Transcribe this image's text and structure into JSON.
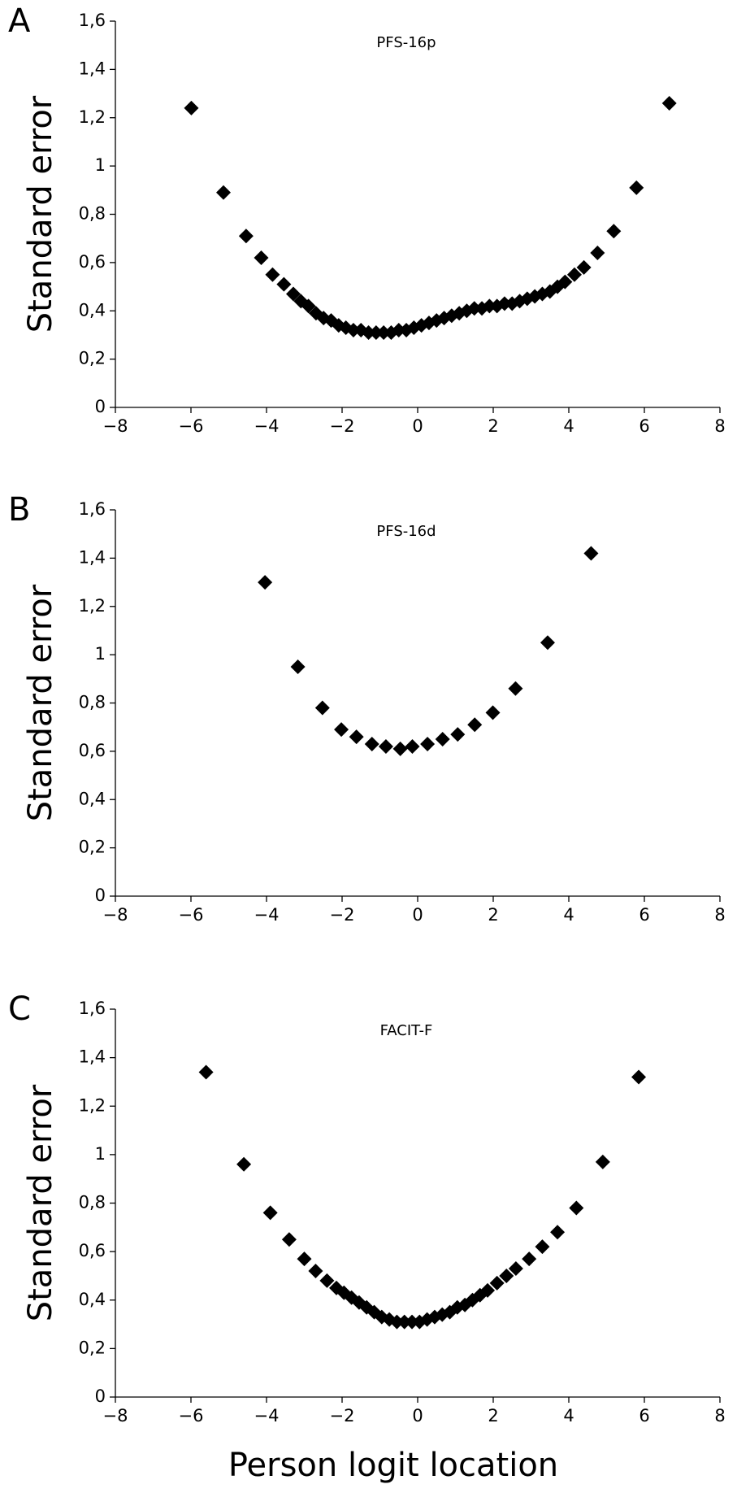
{
  "chart_data": [
    {
      "type": "scatter",
      "panel": "A",
      "title": "PFS-16p",
      "ylabel": "Standard error",
      "color": "#000000",
      "grid": false,
      "x": [
        -5.99,
        -5.14,
        -4.54,
        -4.14,
        -3.84,
        -3.54,
        -3.29,
        -3.09,
        -2.89,
        -2.69,
        -2.49,
        -2.29,
        -2.09,
        -1.9,
        -1.7,
        -1.5,
        -1.3,
        -1.1,
        -0.9,
        -0.7,
        -0.5,
        -0.3,
        -0.1,
        0.1,
        0.3,
        0.5,
        0.7,
        0.9,
        1.1,
        1.3,
        1.5,
        1.7,
        1.9,
        2.1,
        2.3,
        2.5,
        2.7,
        2.9,
        3.1,
        3.3,
        3.5,
        3.7,
        3.9,
        4.15,
        4.4,
        4.76,
        5.19,
        5.79,
        6.66
      ],
      "values": [
        1.24,
        0.89,
        0.71,
        0.62,
        0.55,
        0.51,
        0.47,
        0.44,
        0.42,
        0.39,
        0.37,
        0.36,
        0.34,
        0.33,
        0.32,
        0.32,
        0.31,
        0.31,
        0.31,
        0.31,
        0.32,
        0.32,
        0.33,
        0.34,
        0.35,
        0.36,
        0.37,
        0.38,
        0.39,
        0.4,
        0.41,
        0.41,
        0.42,
        0.42,
        0.43,
        0.43,
        0.44,
        0.45,
        0.46,
        0.47,
        0.48,
        0.5,
        0.52,
        0.55,
        0.58,
        0.64,
        0.73,
        0.91,
        1.26
      ],
      "xlim": [
        -8,
        8
      ],
      "xticks": [
        {
          "value": -8,
          "label": "−8"
        },
        {
          "value": -6,
          "label": "−6"
        },
        {
          "value": -4,
          "label": "−4"
        },
        {
          "value": -2,
          "label": "−2"
        },
        0,
        2,
        4,
        6,
        8
      ],
      "ylim": [
        0,
        1.6
      ],
      "yticks": [
        0,
        {
          "value": 0.2,
          "label": "0,2"
        },
        {
          "value": 0.4,
          "label": "0,4"
        },
        {
          "value": 0.6,
          "label": "0,6"
        },
        {
          "value": 0.8,
          "label": "0,8"
        },
        1,
        {
          "value": 1.2,
          "label": "1,2"
        },
        {
          "value": 1.4,
          "label": "1,4"
        },
        {
          "value": 1.6,
          "label": "1,6"
        }
      ]
    },
    {
      "type": "scatter",
      "panel": "B",
      "title": "PFS-16d",
      "ylabel": "Standard error",
      "color": "#000000",
      "grid": false,
      "x": [
        -4.04,
        -3.17,
        -2.52,
        -2.02,
        -1.62,
        -1.21,
        -0.84,
        -0.46,
        -0.14,
        0.26,
        0.66,
        1.06,
        1.51,
        1.99,
        2.59,
        3.44,
        4.59
      ],
      "values": [
        1.3,
        0.95,
        0.78,
        0.69,
        0.66,
        0.63,
        0.62,
        0.61,
        0.62,
        0.63,
        0.65,
        0.67,
        0.71,
        0.76,
        0.86,
        1.05,
        1.42
      ],
      "xlim": [
        -8,
        8
      ],
      "xticks": [
        {
          "value": -8,
          "label": "−8"
        },
        {
          "value": -6,
          "label": "−6"
        },
        {
          "value": -4,
          "label": "−4"
        },
        {
          "value": -2,
          "label": "−2"
        },
        0,
        2,
        4,
        6,
        8
      ],
      "ylim": [
        0,
        1.6
      ],
      "yticks": [
        0,
        {
          "value": 0.2,
          "label": "0,2"
        },
        {
          "value": 0.4,
          "label": "0,4"
        },
        {
          "value": 0.6,
          "label": "0,6"
        },
        {
          "value": 0.8,
          "label": "0,8"
        },
        1,
        {
          "value": 1.2,
          "label": "1,2"
        },
        {
          "value": 1.4,
          "label": "1,4"
        },
        {
          "value": 1.6,
          "label": "1,6"
        }
      ]
    },
    {
      "type": "scatter",
      "panel": "C",
      "title": "FACIT-F",
      "ylabel": "Standard error",
      "xlabel": "Person logit location",
      "color": "#000000",
      "grid": false,
      "x": [
        -5.6,
        -4.6,
        -3.9,
        -3.4,
        -3.0,
        -2.7,
        -2.4,
        -2.15,
        -1.95,
        -1.75,
        -1.55,
        -1.35,
        -1.15,
        -0.95,
        -0.75,
        -0.55,
        -0.35,
        -0.15,
        0.05,
        0.25,
        0.45,
        0.65,
        0.85,
        1.05,
        1.25,
        1.45,
        1.65,
        1.85,
        2.1,
        2.35,
        2.6,
        2.95,
        3.3,
        3.7,
        4.2,
        4.9,
        5.85
      ],
      "values": [
        1.34,
        0.96,
        0.76,
        0.65,
        0.57,
        0.52,
        0.48,
        0.45,
        0.43,
        0.41,
        0.39,
        0.37,
        0.35,
        0.33,
        0.32,
        0.31,
        0.31,
        0.31,
        0.31,
        0.32,
        0.33,
        0.34,
        0.35,
        0.37,
        0.38,
        0.4,
        0.42,
        0.44,
        0.47,
        0.5,
        0.53,
        0.57,
        0.62,
        0.68,
        0.78,
        0.97,
        1.32
      ],
      "xlim": [
        -8,
        8
      ],
      "xticks": [
        {
          "value": -8,
          "label": "−8"
        },
        {
          "value": -6,
          "label": "−6"
        },
        {
          "value": -4,
          "label": "−4"
        },
        {
          "value": -2,
          "label": "−2"
        },
        0,
        2,
        4,
        6,
        8
      ],
      "ylim": [
        0,
        1.6
      ],
      "yticks": [
        0,
        {
          "value": 0.2,
          "label": "0,2"
        },
        {
          "value": 0.4,
          "label": "0,4"
        },
        {
          "value": 0.6,
          "label": "0,6"
        },
        {
          "value": 0.8,
          "label": "0,8"
        },
        1,
        {
          "value": 1.2,
          "label": "1,2"
        },
        {
          "value": 1.4,
          "label": "1,4"
        },
        {
          "value": 1.6,
          "label": "1,6"
        }
      ]
    }
  ]
}
